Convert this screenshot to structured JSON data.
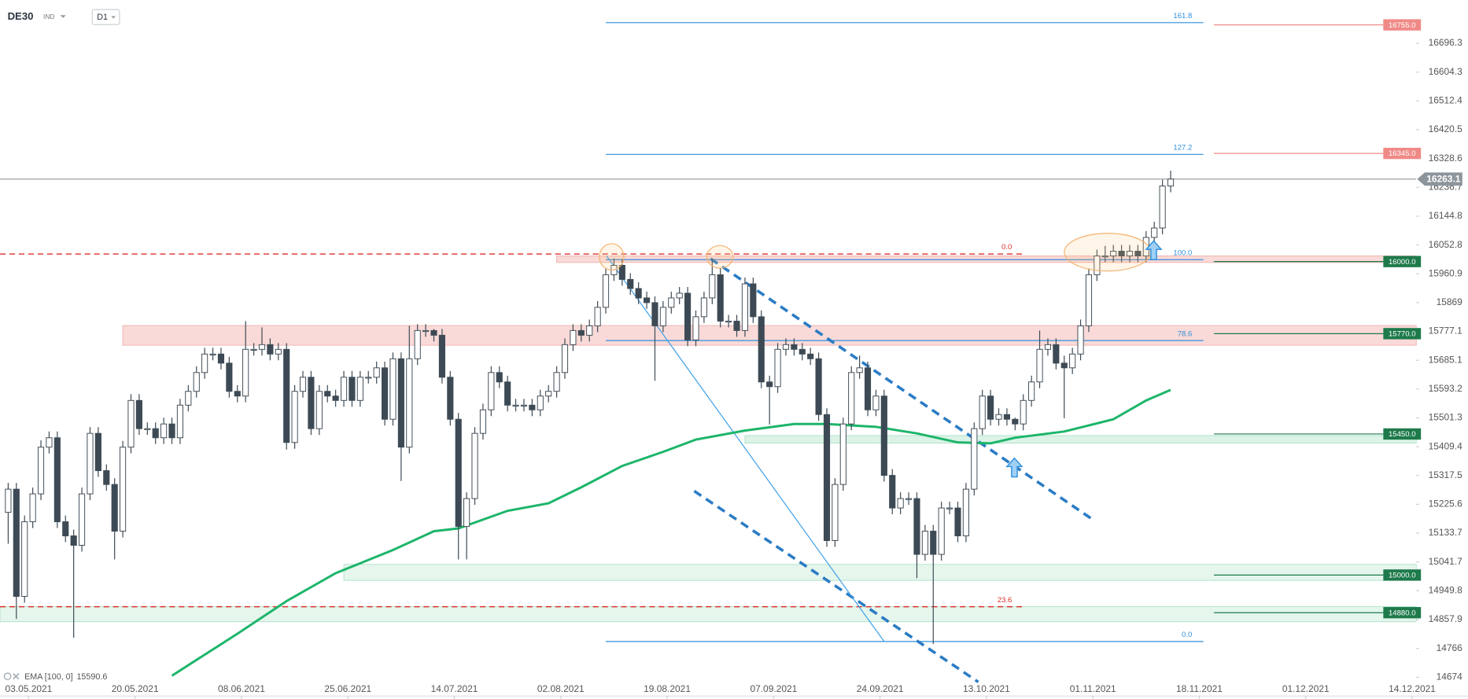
{
  "toolbar": {
    "symbol": "DE30",
    "market": "IND",
    "interval": "D1"
  },
  "chart_data": {
    "type": "candlestick",
    "up_color": "#ffffff",
    "down_color": "#3d4a55",
    "wick_color": "#3d4a55",
    "xlim": [
      -1,
      172
    ],
    "ylim": [
      14614,
      16834
    ],
    "xticks": [
      {
        "value": 2.5,
        "label": "03.05.2021"
      },
      {
        "value": 15.5,
        "label": "20.05.2021"
      },
      {
        "value": 28.5,
        "label": "08.06.2021"
      },
      {
        "value": 41.5,
        "label": "25.06.2021"
      },
      {
        "value": 54.5,
        "label": "14.07.2021"
      },
      {
        "value": 67.5,
        "label": "02.08.2021"
      },
      {
        "value": 80.5,
        "label": "19.08.2021"
      },
      {
        "value": 93.5,
        "label": "07.09.2021"
      },
      {
        "value": 106.5,
        "label": "24.09.2021"
      },
      {
        "value": 119.5,
        "label": "13.10.2021"
      },
      {
        "value": 132.5,
        "label": "01.11.2021"
      },
      {
        "value": 145.5,
        "label": "18.11.2021"
      },
      {
        "value": 158.5,
        "label": "01.12.2021"
      },
      {
        "value": 171.5,
        "label": "14.12.2021"
      }
    ],
    "yticks": [
      16696.3,
      16604.3,
      16512.4,
      16420.5,
      16328.6,
      16236.7,
      16144.8,
      16052.8,
      15960.9,
      15869.0,
      15777.1,
      15685.1,
      15593.2,
      15501.3,
      15409.4,
      15317.5,
      15225.6,
      15133.7,
      15041.7,
      14949.8,
      14857.9,
      14766.0,
      14674.0
    ],
    "open": [
      15200,
      15274,
      14932,
      15170,
      15259,
      15408,
      15438,
      15170,
      15125,
      15095,
      15259,
      15452,
      15333,
      15289,
      15140,
      15408,
      15557,
      15467,
      15467,
      15438,
      15482,
      15438,
      15542,
      15586,
      15646,
      15705,
      15705,
      15676,
      15586,
      15571,
      15720,
      15720,
      15735,
      15705,
      15720,
      15423,
      15586,
      15631,
      15467,
      15586,
      15571,
      15557,
      15631,
      15557,
      15631,
      15631,
      15661,
      15497,
      15690,
      15408,
      15690,
      15780,
      15780,
      15765,
      15631,
      15497,
      15155,
      15244,
      15452,
      15527,
      15646,
      15616,
      15542,
      15542,
      15542,
      15527,
      15571,
      15586,
      15646,
      15735,
      15780,
      15765,
      15795,
      15854,
      15958,
      15988,
      15943,
      15914,
      15884,
      15869,
      15795,
      15854,
      15884,
      15899,
      15750,
      15824,
      15884,
      15958,
      15810,
      15810,
      15780,
      15929,
      15824,
      15616,
      15601,
      15720,
      15735,
      15720,
      15705,
      15690,
      15512,
      15110,
      15289,
      15482,
      15646,
      15661,
      15527,
      15571,
      15318,
      15214,
      15244,
      15244,
      15066,
      15140,
      15066,
      15214,
      15214,
      15125,
      15274,
      15467,
      15571,
      15497,
      15512,
      15497,
      15482,
      15557,
      15616,
      15720,
      15735,
      15676,
      15661,
      15705,
      15795,
      15958,
      16018,
      16018,
      16033,
      16018,
      16033,
      16018,
      16077,
      16107,
      16241
    ],
    "high": [
      15294,
      15294,
      15190,
      15279,
      15430,
      15458,
      15458,
      15190,
      15145,
      15279,
      15472,
      15472,
      15353,
      15309,
      15428,
      15577,
      15577,
      15487,
      15487,
      15502,
      15502,
      15562,
      15606,
      15666,
      15725,
      15725,
      15725,
      15696,
      15606,
      15810,
      15740,
      15790,
      15755,
      15740,
      15740,
      15606,
      15651,
      15651,
      15606,
      15606,
      15591,
      15651,
      15651,
      15651,
      15651,
      15681,
      15681,
      15710,
      15710,
      15795,
      15800,
      15800,
      15785,
      15785,
      15651,
      15517,
      15264,
      15472,
      15547,
      15666,
      15666,
      15636,
      15562,
      15562,
      15562,
      15591,
      15606,
      15666,
      15755,
      15800,
      15800,
      15815,
      15874,
      15978,
      16010,
      16008,
      15963,
      15934,
      15904,
      15889,
      15874,
      15904,
      15919,
      15919,
      15844,
      15904,
      16010,
      15978,
      15830,
      15830,
      15949,
      15949,
      15844,
      15636,
      15740,
      15755,
      15755,
      15740,
      15725,
      15710,
      15532,
      15309,
      15502,
      15666,
      15700,
      15681,
      15591,
      15591,
      15338,
      15264,
      15264,
      15264,
      15160,
      15160,
      15234,
      15234,
      15234,
      15294,
      15487,
      15591,
      15591,
      15532,
      15532,
      15502,
      15577,
      15636,
      15780,
      15755,
      15755,
      15700,
      15725,
      15815,
      15978,
      16038,
      16050,
      16053,
      16053,
      16053,
      16053,
      16097,
      16127,
      16261,
      16290
    ],
    "low": [
      15100,
      14860,
      14912,
      15150,
      15239,
      15388,
      15150,
      15105,
      14800,
      15075,
      15239,
      15313,
      15269,
      15050,
      15120,
      15388,
      15447,
      15447,
      15418,
      15418,
      15418,
      15418,
      15522,
      15566,
      15626,
      15685,
      15656,
      15566,
      15551,
      15551,
      15700,
      15700,
      15685,
      15685,
      15400,
      15403,
      15566,
      15447,
      15447,
      15551,
      15537,
      15537,
      15537,
      15537,
      15611,
      15611,
      15477,
      15477,
      15300,
      15388,
      15670,
      15760,
      15745,
      15611,
      15477,
      15050,
      15050,
      15224,
      15432,
      15507,
      15596,
      15522,
      15522,
      15522,
      15507,
      15507,
      15551,
      15566,
      15626,
      15715,
      15745,
      15745,
      15775,
      15834,
      15938,
      15923,
      15894,
      15864,
      15849,
      15620,
      15775,
      15834,
      15864,
      15730,
      15730,
      15804,
      15864,
      15790,
      15790,
      15760,
      15760,
      15804,
      15596,
      15480,
      15581,
      15700,
      15700,
      15685,
      15670,
      15492,
      15090,
      15090,
      15269,
      15462,
      15626,
      15507,
      15507,
      15298,
      15194,
      15194,
      15224,
      14990,
      15046,
      14780,
      15046,
      15194,
      15105,
      15105,
      15254,
      15447,
      15477,
      15477,
      15477,
      15462,
      15462,
      15537,
      15596,
      15700,
      15656,
      15500,
      15641,
      15685,
      15775,
      15938,
      15998,
      15998,
      15998,
      15998,
      15998,
      15998,
      16057,
      16087,
      16221
    ],
    "close": [
      15274,
      14932,
      15170,
      15259,
      15408,
      15438,
      15170,
      15125,
      15095,
      15259,
      15452,
      15333,
      15289,
      15140,
      15408,
      15557,
      15467,
      15467,
      15438,
      15482,
      15438,
      15542,
      15586,
      15646,
      15705,
      15705,
      15676,
      15586,
      15571,
      15720,
      15720,
      15735,
      15705,
      15720,
      15423,
      15586,
      15631,
      15467,
      15586,
      15571,
      15557,
      15631,
      15557,
      15631,
      15631,
      15661,
      15497,
      15690,
      15408,
      15690,
      15780,
      15780,
      15765,
      15631,
      15497,
      15155,
      15244,
      15452,
      15527,
      15646,
      15616,
      15542,
      15542,
      15542,
      15527,
      15571,
      15586,
      15646,
      15735,
      15780,
      15765,
      15795,
      15854,
      15958,
      15988,
      15943,
      15914,
      15884,
      15869,
      15795,
      15854,
      15884,
      15899,
      15750,
      15824,
      15884,
      15958,
      15810,
      15810,
      15780,
      15929,
      15824,
      15616,
      15601,
      15720,
      15735,
      15720,
      15705,
      15690,
      15512,
      15110,
      15289,
      15482,
      15646,
      15661,
      15527,
      15571,
      15318,
      15214,
      15244,
      15244,
      15066,
      15140,
      15066,
      15214,
      15214,
      15125,
      15274,
      15467,
      15571,
      15497,
      15512,
      15497,
      15482,
      15557,
      15616,
      15720,
      15735,
      15676,
      15661,
      15705,
      15795,
      15958,
      16018,
      16018,
      16033,
      16018,
      16033,
      16018,
      16077,
      16107,
      16241,
      16263.1
    ],
    "ema": {
      "name": "EMA [100, 0]",
      "color": "#1db56a",
      "x": [
        20,
        28,
        34,
        40,
        47,
        52,
        55,
        61,
        66,
        70,
        75,
        80,
        84,
        90,
        96,
        100,
        106,
        111,
        116,
        120,
        123,
        129,
        135,
        139,
        142
      ],
      "values": [
        14679,
        14813,
        14917,
        15006,
        15080,
        15140,
        15149,
        15205,
        15229,
        15280,
        15348,
        15393,
        15432,
        15461,
        15482,
        15482,
        15473,
        15452,
        15423,
        15420,
        15438,
        15458,
        15497,
        15557,
        15590.6
      ]
    },
    "zones": [
      {
        "low": 15733,
        "high": 15796,
        "start": 14,
        "color": "#f8d3d1"
      },
      {
        "low": 15997,
        "high": 16018,
        "start": 67,
        "color": "#f8d3d1"
      },
      {
        "low": 15421,
        "high": 15445,
        "start": 90,
        "color": "#d6f1e3"
      },
      {
        "low": 14983,
        "high": 15034,
        "start": 41,
        "color": "#e0f5ea"
      },
      {
        "low": 14851,
        "high": 14899,
        "start": -1,
        "color": "#e0f5ea"
      }
    ],
    "levels": [
      {
        "value": 16755,
        "label": "16755.0",
        "color": "#ef8a87"
      },
      {
        "value": 16345,
        "label": "16345.0",
        "color": "#ef8a87"
      },
      {
        "value": 16000,
        "label": "16000.0",
        "color": "#1e7a4b"
      },
      {
        "value": 15770,
        "label": "15770.0",
        "color": "#1e7a4b"
      },
      {
        "value": 15450,
        "label": "15450.0",
        "color": "#1e7a4b"
      },
      {
        "value": 15000,
        "label": "15000.0",
        "color": "#1e7a4b"
      },
      {
        "value": 14880,
        "label": "14880.0",
        "color": "#1e7a4b"
      }
    ],
    "fib_blue": {
      "color": "#2f8fdc",
      "start": 73,
      "end": 146,
      "levels": [
        {
          "label": "161.8",
          "price": 16762
        },
        {
          "label": "127.2",
          "price": 16342
        },
        {
          "label": "100.0",
          "price": 16006
        },
        {
          "label": "78.6",
          "price": 15748
        },
        {
          "label": "0.0",
          "price": 14788
        }
      ]
    },
    "fib_red": {
      "color": "#d9302c",
      "start": -1,
      "end": 124,
      "levels": [
        {
          "label": "0.0",
          "price": 16024
        },
        {
          "label": "23.6",
          "price": 14899
        }
      ]
    },
    "trendlines": [
      {
        "style": "dashed",
        "color": "#2b7cc4",
        "x": [
          85.8,
          132.6
        ],
        "y": [
          16009,
          15175
        ]
      },
      {
        "style": "dashed",
        "color": "#2b7cc4",
        "x": [
          83.8,
          118.5
        ],
        "y": [
          15268,
          14659
        ]
      },
      {
        "style": "solid",
        "color": "#3ea0e8",
        "x": [
          73.1,
          107.0
        ],
        "y": [
          16018,
          14788
        ]
      }
    ]
  }
}
